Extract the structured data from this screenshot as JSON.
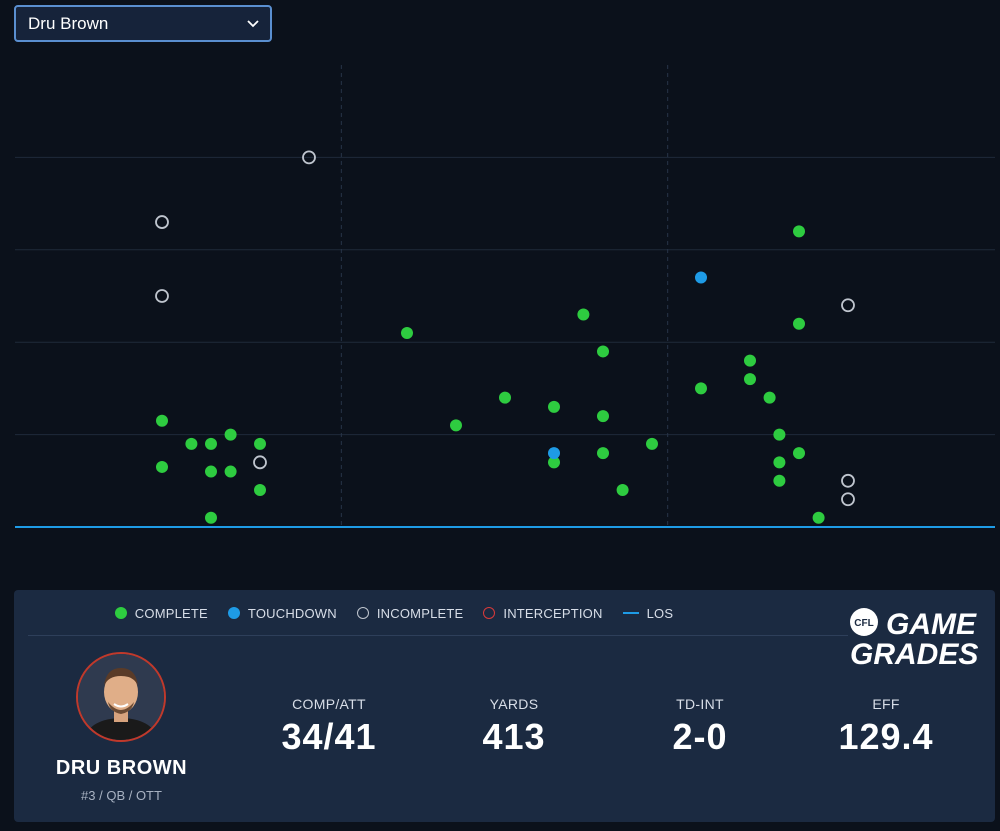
{
  "player_select": {
    "value": "Dru Brown"
  },
  "chart_data": {
    "type": "scatter",
    "title": "",
    "xlabel": "",
    "ylabel": "",
    "xlim": [
      0,
      100
    ],
    "ylim": [
      0,
      50
    ],
    "los": 0,
    "series": [
      {
        "name": "COMPLETE",
        "color": "#2ecc40",
        "fill": true,
        "points": [
          [
            15,
            11.5
          ],
          [
            15,
            6.5
          ],
          [
            18,
            9
          ],
          [
            20,
            9
          ],
          [
            20,
            6
          ],
          [
            20,
            1
          ],
          [
            22,
            10
          ],
          [
            22,
            6
          ],
          [
            25,
            9
          ],
          [
            25,
            4
          ],
          [
            40,
            21
          ],
          [
            45,
            11
          ],
          [
            50,
            14
          ],
          [
            55,
            13
          ],
          [
            58,
            23
          ],
          [
            60,
            19
          ],
          [
            60,
            12
          ],
          [
            60,
            8
          ],
          [
            62,
            4
          ],
          [
            65,
            9
          ],
          [
            70,
            15
          ],
          [
            75,
            18
          ],
          [
            75,
            16
          ],
          [
            77,
            14
          ],
          [
            78,
            10
          ],
          [
            78,
            7
          ],
          [
            78,
            5
          ],
          [
            80,
            32
          ],
          [
            80,
            22
          ],
          [
            80,
            8
          ],
          [
            82,
            1
          ],
          [
            55,
            7
          ]
        ]
      },
      {
        "name": "TOUCHDOWN",
        "color": "#1e9be6",
        "fill": true,
        "points": [
          [
            70,
            27
          ],
          [
            55,
            8
          ]
        ]
      },
      {
        "name": "INCOMPLETE",
        "color": "#bfc5ce",
        "fill": false,
        "points": [
          [
            15,
            33
          ],
          [
            15,
            25
          ],
          [
            30,
            40
          ],
          [
            25,
            7
          ],
          [
            85,
            24
          ],
          [
            85,
            5
          ],
          [
            85,
            3
          ]
        ]
      },
      {
        "name": "INTERCEPTION",
        "color": "#d93a3a",
        "fill": false,
        "points": []
      }
    ],
    "legend": [
      {
        "name": "COMPLETE",
        "kind": "dot",
        "color": "#2ecc40"
      },
      {
        "name": "TOUCHDOWN",
        "kind": "dot",
        "color": "#1e9be6"
      },
      {
        "name": "INCOMPLETE",
        "kind": "ring",
        "color": "#bfc5ce"
      },
      {
        "name": "INTERCEPTION",
        "kind": "ring",
        "color": "#d93a3a"
      },
      {
        "name": "LOS",
        "kind": "line",
        "color": "#1e9be6"
      }
    ],
    "legend_position": "bottom",
    "grid": true
  },
  "logo": {
    "badge": "CFL",
    "line1": "GAME",
    "line2": "GRADES"
  },
  "player": {
    "name": "DRU BROWN",
    "meta": "#3 / QB / OTT"
  },
  "stats": [
    {
      "label": "COMP/ATT",
      "value": "34/41"
    },
    {
      "label": "YARDS",
      "value": "413"
    },
    {
      "label": "TD-INT",
      "value": "2-0"
    },
    {
      "label": "EFF",
      "value": "129.4"
    }
  ]
}
